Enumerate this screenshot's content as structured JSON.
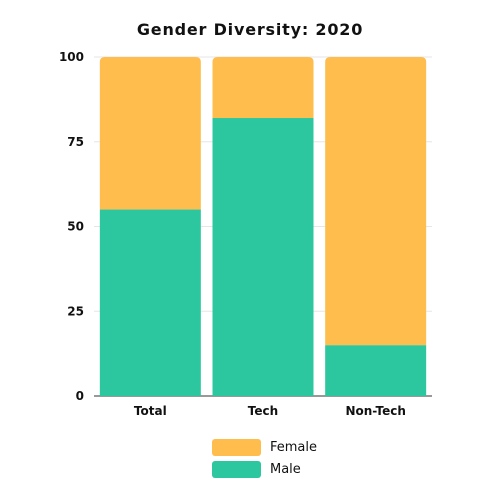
{
  "chart_data": {
    "type": "bar",
    "stacked": true,
    "title": "Gender Diversity: 2020",
    "categories": [
      "Total",
      "Tech",
      "Non-Tech"
    ],
    "series": [
      {
        "name": "Male",
        "values": [
          55,
          82,
          15
        ],
        "color": "#2DC79F"
      },
      {
        "name": "Female",
        "values": [
          45,
          18,
          85
        ],
        "color": "#FFBD4E"
      }
    ],
    "ylim": [
      0,
      100
    ],
    "yticks": [
      "0",
      "25",
      "50",
      "75",
      "100"
    ],
    "grid": true,
    "legend_placement": "bottom-center",
    "legend": [
      {
        "name": "Female",
        "color": "#FFBD4E"
      },
      {
        "name": "Male",
        "color": "#2DC79F"
      }
    ]
  }
}
